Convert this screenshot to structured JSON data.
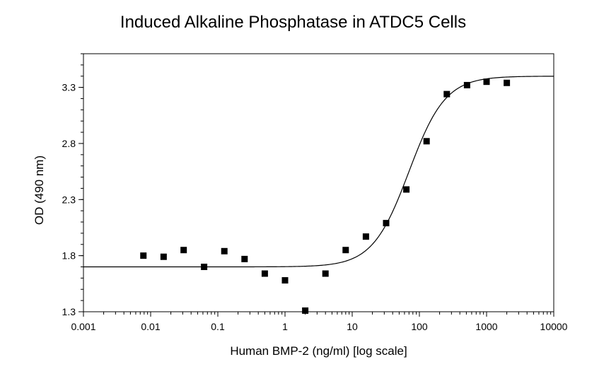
{
  "chart_data": {
    "type": "scatter",
    "title": "Induced Alkaline Phosphatase in ATDC5 Cells",
    "xlabel": "Human BMP-2 (ng/ml) [log scale]",
    "ylabel": "OD (490 nm)",
    "x_scale": "log",
    "xlim": [
      0.001,
      10000
    ],
    "ylim": [
      1.3,
      3.6
    ],
    "x_ticks": [
      "0.001",
      "0.01",
      "0.1",
      "1",
      "10",
      "100",
      "1000",
      "10000"
    ],
    "y_ticks": [
      "1.3",
      "1.8",
      "2.3",
      "2.8",
      "3.3"
    ],
    "grid": false,
    "series": [
      {
        "marker": "square",
        "color": "#000000",
        "x": [
          0.0078,
          0.0156,
          0.031,
          0.0625,
          0.125,
          0.25,
          0.5,
          1,
          2,
          4,
          8,
          16,
          32,
          64,
          128,
          256,
          512,
          1000,
          2000
        ],
        "y": [
          1.8,
          1.79,
          1.85,
          1.7,
          1.84,
          1.77,
          1.64,
          1.58,
          1.31,
          1.64,
          1.85,
          1.97,
          2.09,
          2.39,
          2.82,
          3.24,
          3.32,
          3.35,
          3.34
        ]
      }
    ],
    "fit_curve": {
      "type": "4PL",
      "color": "#000000",
      "bottom": 1.7,
      "top": 3.4,
      "ec50": 70,
      "hill": 1.6
    }
  }
}
